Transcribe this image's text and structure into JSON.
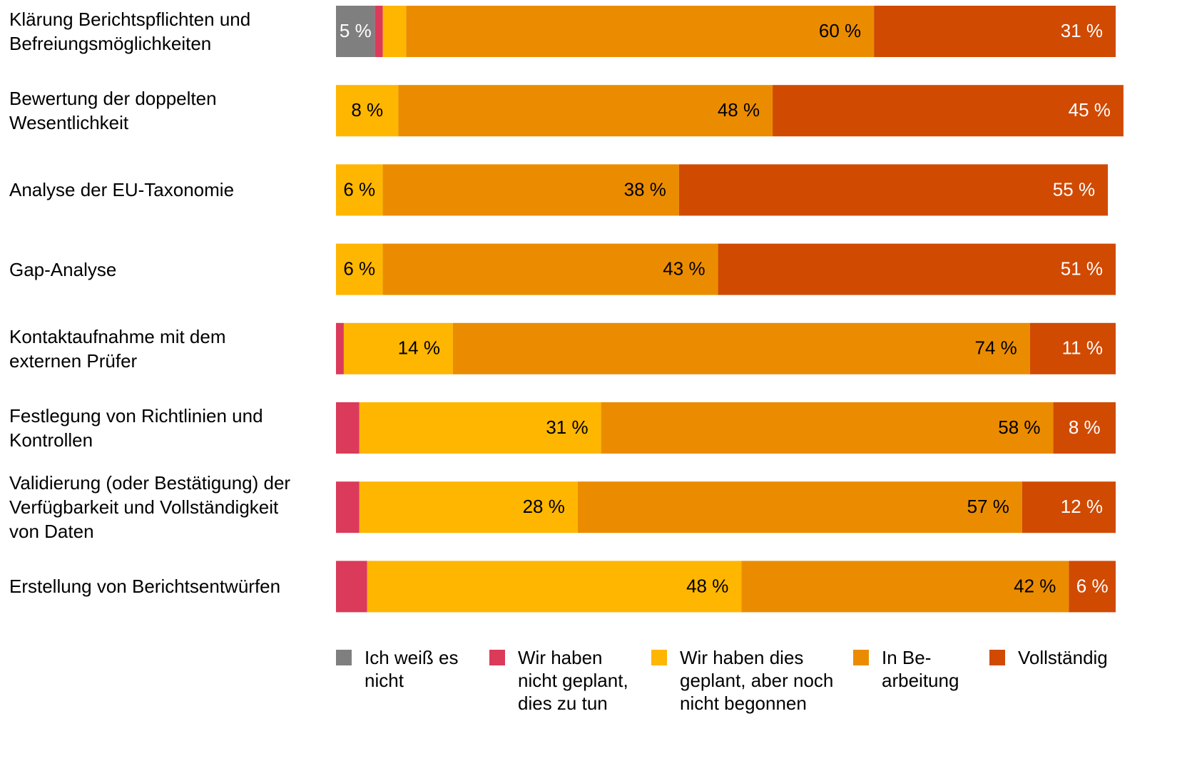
{
  "chart_data": {
    "type": "stacked-bar-horizontal",
    "categories": [
      "Klärung Berichtspflichten und\nBefreiungsmöglichkeiten",
      "Bewertung der doppelten\nWesentlichkeit",
      "Analyse der EU-Taxonomie",
      "Gap-Analyse",
      "Kontaktaufnahme mit dem\nexternen Prüfer",
      "Festlegung von Richtlinien und\nKontrollen",
      "Validierung (oder Bestätigung) der\nVerfügbarkeit und Vollständigkeit\nvon Daten",
      "Erstellung von Berichtsentwürfen"
    ],
    "xlim": [
      0,
      100
    ],
    "series": [
      {
        "name": "Ich weiß es\nnicht",
        "color": "#7f7f7f",
        "values": [
          5,
          null,
          null,
          null,
          null,
          null,
          null,
          null
        ],
        "value_labels": [
          "5 %",
          null,
          null,
          null,
          null,
          null,
          null,
          null
        ]
      },
      {
        "name": "Wir haben\nnicht geplant,\ndies zu tun",
        "color": "#db3a5a",
        "values": [
          1,
          null,
          null,
          null,
          1,
          3,
          3,
          4
        ],
        "value_labels": [
          null,
          null,
          null,
          null,
          null,
          null,
          null,
          null
        ]
      },
      {
        "name": "Wir haben dies\ngeplant, aber noch\nnicht begonnen",
        "color": "#ffb600",
        "values": [
          3,
          8,
          6,
          6,
          14,
          31,
          28,
          48
        ],
        "value_labels": [
          null,
          "8 %",
          "6 %",
          "6 %",
          "14 %",
          "31 %",
          "28 %",
          "48 %"
        ]
      },
      {
        "name": "In Be-\narbeitung",
        "color": "#eb8c00",
        "values": [
          60,
          48,
          38,
          43,
          74,
          58,
          57,
          42
        ],
        "value_labels": [
          "60 %",
          "48 %",
          "38 %",
          "43 %",
          "74 %",
          "58 %",
          "57 %",
          "42 %"
        ]
      },
      {
        "name": "Vollständig",
        "color": "#d04a02",
        "values": [
          31,
          45,
          55,
          51,
          11,
          8,
          12,
          6
        ],
        "value_labels": [
          "31 %",
          "45 %",
          "55 %",
          "51 %",
          "11 %",
          "8 %",
          "12 %",
          "6 %"
        ]
      }
    ]
  }
}
